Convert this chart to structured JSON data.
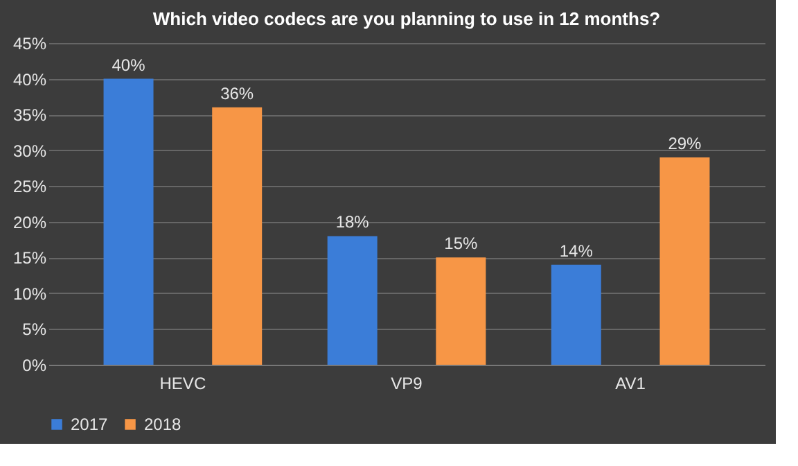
{
  "chart_data": {
    "type": "bar",
    "title": "Which video codecs  are you planning to use in 12 months?",
    "categories": [
      "HEVC",
      "VP9",
      "AV1"
    ],
    "series": [
      {
        "name": "2017",
        "color": "#3b7dd8",
        "values": [
          40,
          18,
          14
        ],
        "value_labels": [
          "40%",
          "18%",
          "14%"
        ]
      },
      {
        "name": "2018",
        "color": "#f79646",
        "values": [
          36,
          15,
          29
        ],
        "value_labels": [
          "36%",
          "15%",
          "29%"
        ]
      }
    ],
    "ylim": [
      0,
      45
    ],
    "yticks": [
      {
        "value": 0,
        "label": "0%"
      },
      {
        "value": 5,
        "label": "5%"
      },
      {
        "value": 10,
        "label": "10%"
      },
      {
        "value": 15,
        "label": "15%"
      },
      {
        "value": 20,
        "label": "20%"
      },
      {
        "value": 25,
        "label": "25%"
      },
      {
        "value": 30,
        "label": "30%"
      },
      {
        "value": 35,
        "label": "35%"
      },
      {
        "value": 40,
        "label": "40%"
      },
      {
        "value": 45,
        "label": "45%"
      }
    ],
    "grid": "y",
    "legend": "bottom"
  }
}
